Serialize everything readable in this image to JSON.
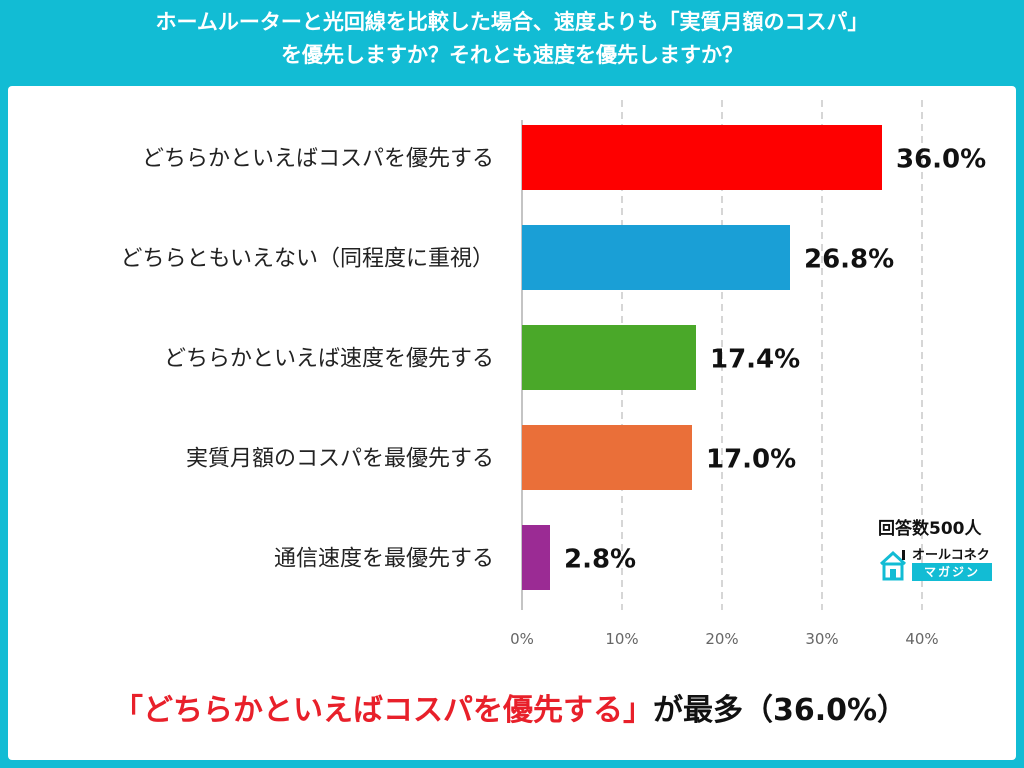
{
  "title": {
    "line1": "ホームルーターと光回線を比較した場合、速度よりも「実質月額のコスパ」",
    "line2": "を優先しますか？それとも速度を優先しますか？"
  },
  "chart_data": {
    "type": "bar",
    "orientation": "horizontal",
    "categories": [
      "どちらかといえばコスパを優先する",
      "どちらともいえない（同程度に重視）",
      "どちらかといえば速度を優先する",
      "実質月額のコスパを最優先する",
      "通信速度を最優先する"
    ],
    "values": [
      36.0,
      26.8,
      17.4,
      17.0,
      2.8
    ],
    "value_labels": [
      "36.0%",
      "26.8%",
      "17.4%",
      "17.0%",
      "2.8%"
    ],
    "colors": [
      "#fe0000",
      "#1a9fd6",
      "#4aa829",
      "#ea6f39",
      "#9b2b94"
    ],
    "xlim": [
      0,
      40
    ],
    "ticks": [
      "0%",
      "10%",
      "20%",
      "30%",
      "40%"
    ],
    "grid": true
  },
  "respondents": "回答数500人",
  "logo": {
    "name": "オールコネクト",
    "sub": "マガジン"
  },
  "callout": {
    "quote": "「どちらかといえばコスパを優先する」",
    "rest": "が最多（36.0%）"
  }
}
